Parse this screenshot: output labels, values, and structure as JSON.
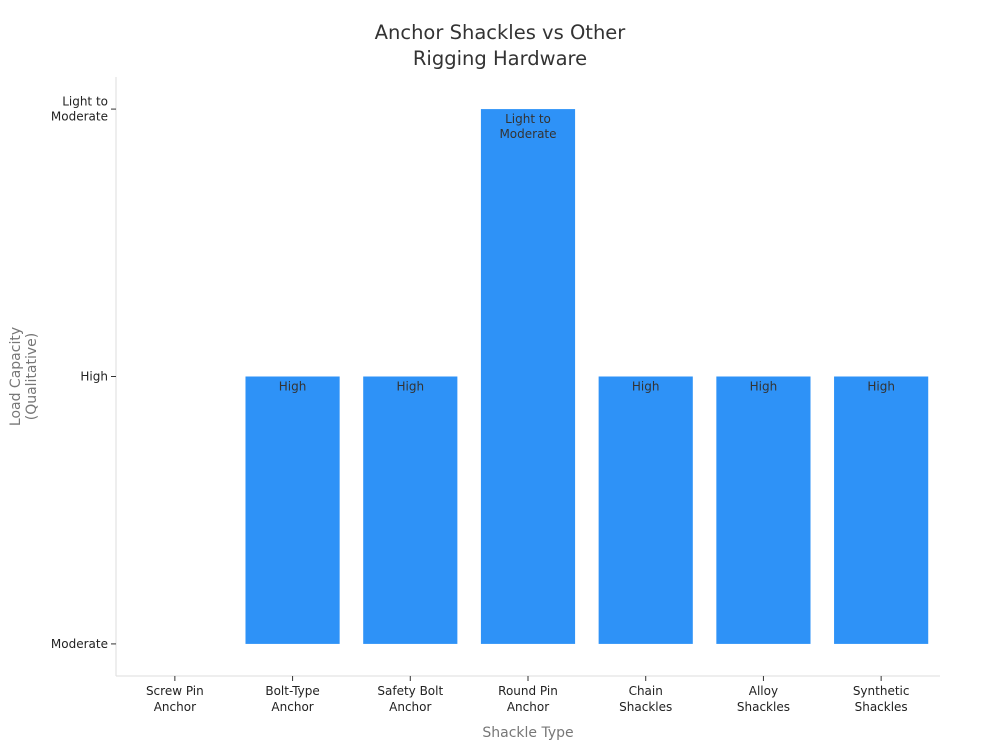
{
  "chart_data": {
    "type": "bar",
    "title": [
      "Anchor Shackles vs Other",
      "Rigging Hardware"
    ],
    "xlabel": "Shackle Type",
    "ylabel": [
      "Load Capacity",
      "(Qualitative)"
    ],
    "y_levels": [
      {
        "value": 0,
        "label": [
          "Moderate"
        ]
      },
      {
        "value": 1,
        "label": [
          "High"
        ]
      },
      {
        "value": 2,
        "label": [
          "Light to",
          "Moderate"
        ]
      }
    ],
    "ylim": [
      -0.12,
      2.12
    ],
    "categories": [
      [
        "Screw Pin",
        "Anchor"
      ],
      [
        "Bolt-Type",
        "Anchor"
      ],
      [
        "Safety Bolt",
        "Anchor"
      ],
      [
        "Round Pin",
        "Anchor"
      ],
      [
        "Chain",
        "Shackles"
      ],
      [
        "Alloy",
        "Shackles"
      ],
      [
        "Synthetic",
        "Shackles"
      ]
    ],
    "values": [
      0,
      1,
      1,
      2,
      1,
      1,
      1
    ],
    "value_labels": [
      [],
      [
        "High"
      ],
      [
        "High"
      ],
      [
        "Light to",
        "Moderate"
      ],
      [
        "High"
      ],
      [
        "High"
      ],
      [
        "High"
      ]
    ],
    "bar_color": "#2e92f7",
    "grid": false,
    "legend": "none"
  }
}
